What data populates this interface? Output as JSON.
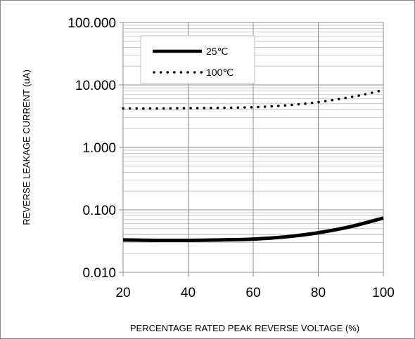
{
  "chart_data": {
    "type": "line",
    "title": "",
    "xlabel": "PERCENTAGE RATED PEAK REVERSE VOLTAGE (%)",
    "ylabel": "REVERSE LEAKAGE CURRENT (uA)",
    "xlim": [
      20,
      100
    ],
    "ylim": [
      0.01,
      100
    ],
    "yscale": "log",
    "grid": true,
    "legend_position": "top-left",
    "x_ticks": [
      20,
      40,
      60,
      80,
      100
    ],
    "x_tick_labels": [
      "20",
      "40",
      "60",
      "80",
      "100"
    ],
    "y_ticks": [
      0.01,
      0.1,
      1,
      10,
      100
    ],
    "y_tick_labels": [
      "0.010",
      "0.100",
      "1.000",
      "10.000",
      "100.000"
    ],
    "series": [
      {
        "name": "25℃",
        "style": "solid",
        "color": "#000000",
        "x": [
          20,
          30,
          40,
          50,
          60,
          70,
          80,
          90,
          100
        ],
        "y": [
          0.033,
          0.0325,
          0.0325,
          0.033,
          0.034,
          0.037,
          0.043,
          0.054,
          0.074
        ]
      },
      {
        "name": "100℃",
        "style": "dotted",
        "color": "#000000",
        "x": [
          20,
          30,
          40,
          50,
          60,
          70,
          80,
          90,
          95,
          100
        ],
        "y": [
          4.2,
          4.2,
          4.25,
          4.3,
          4.4,
          4.7,
          5.3,
          6.4,
          7.2,
          8.3
        ]
      }
    ]
  }
}
